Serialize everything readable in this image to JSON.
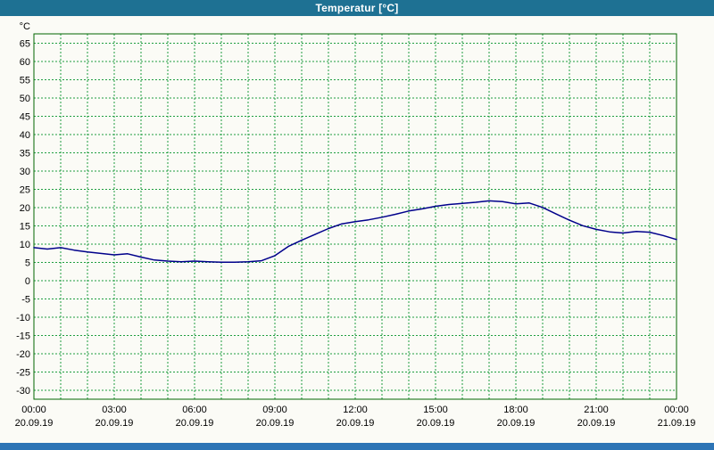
{
  "window": {
    "title": "Temperatur [°C]"
  },
  "colors": {
    "page_bg": "#fbfbf6",
    "titlebar_bg": "#1e7193",
    "titlebar_text": "#ffffff",
    "bottom_bar": "#2d74b5",
    "grid": "#1f9e40",
    "plot_border": "#006600",
    "line": "#00008b",
    "label": "#000000"
  },
  "chart_data": {
    "type": "line",
    "title": "Temperatur [°C]",
    "y_unit": "°C",
    "ylabel": "",
    "xlabel": "",
    "ylim": [
      -32.5,
      67.5
    ],
    "y_tick_step": 5,
    "y_ticks": [
      65,
      60,
      55,
      50,
      45,
      40,
      35,
      30,
      25,
      20,
      15,
      10,
      5,
      0,
      -5,
      -10,
      -15,
      -20,
      -25,
      -30
    ],
    "x_range_hours": [
      0,
      24
    ],
    "x_grid_step_hours": 1,
    "x_ticks": [
      {
        "hour": 0,
        "time": "00:00",
        "date": "20.09.19"
      },
      {
        "hour": 3,
        "time": "03:00",
        "date": "20.09.19"
      },
      {
        "hour": 6,
        "time": "06:00",
        "date": "20.09.19"
      },
      {
        "hour": 9,
        "time": "09:00",
        "date": "20.09.19"
      },
      {
        "hour": 12,
        "time": "12:00",
        "date": "20.09.19"
      },
      {
        "hour": 15,
        "time": "15:00",
        "date": "20.09.19"
      },
      {
        "hour": 18,
        "time": "18:00",
        "date": "20.09.19"
      },
      {
        "hour": 21,
        "time": "21:00",
        "date": "20.09.19"
      },
      {
        "hour": 24,
        "time": "00:00",
        "date": "21.09.19"
      }
    ],
    "grid": "dashed green; vertical every hour, horizontal every 5 °C",
    "legend": "none",
    "series": [
      {
        "name": "Temperatur",
        "x": [
          0,
          0.5,
          1,
          1.5,
          2,
          2.5,
          3,
          3.5,
          4,
          4.5,
          5,
          5.5,
          6,
          6.5,
          7,
          7.5,
          8,
          8.5,
          9,
          9.5,
          10,
          10.5,
          11,
          11.5,
          12,
          12.5,
          13,
          13.5,
          14,
          14.5,
          15,
          15.5,
          16,
          16.5,
          17,
          17.5,
          18,
          18.5,
          19,
          19.5,
          20,
          20.5,
          21,
          21.5,
          22,
          22.5,
          23,
          23.5,
          24
        ],
        "values": [
          9.0,
          8.6,
          9.0,
          8.3,
          7.8,
          7.4,
          7.0,
          7.3,
          6.4,
          5.6,
          5.3,
          5.1,
          5.3,
          5.1,
          5.0,
          5.0,
          5.1,
          5.4,
          6.8,
          9.3,
          11.0,
          12.6,
          14.2,
          15.5,
          16.1,
          16.6,
          17.3,
          18.1,
          19.0,
          19.6,
          20.3,
          20.8,
          21.1,
          21.4,
          21.8,
          21.6,
          21.0,
          21.2,
          20.0,
          18.2,
          16.5,
          15.0,
          14.0,
          13.3,
          13.0,
          13.4,
          13.2,
          12.3,
          11.2
        ]
      }
    ]
  }
}
